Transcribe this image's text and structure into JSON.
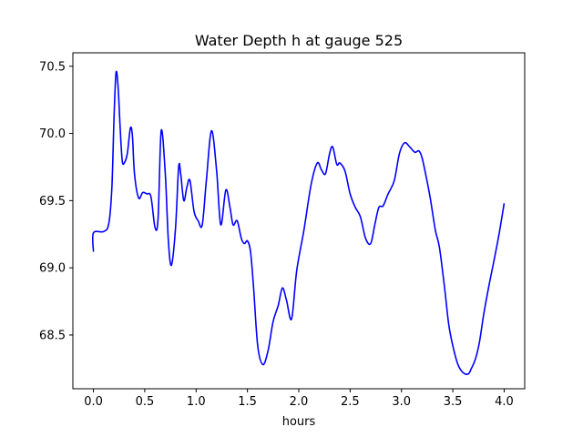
{
  "chart_data": {
    "type": "line",
    "title": "Water Depth h at gauge 525",
    "xlabel": "hours",
    "ylabel": "",
    "xlim": [
      -0.2,
      4.2
    ],
    "ylim": [
      68.1,
      70.6
    ],
    "xticks": [
      0.0,
      0.5,
      1.0,
      1.5,
      2.0,
      2.5,
      3.0,
      3.5,
      4.0
    ],
    "xtick_labels": [
      "0.0",
      "0.5",
      "1.0",
      "1.5",
      "2.0",
      "2.5",
      "3.0",
      "3.5",
      "4.0"
    ],
    "yticks": [
      68.5,
      69.0,
      69.5,
      70.0,
      70.5
    ],
    "ytick_labels": [
      "68.5",
      "69.0",
      "69.5",
      "70.0",
      "70.5"
    ],
    "grid": false,
    "series": [
      {
        "color": "#0000ff",
        "x": [
          0.0,
          0.0,
          0.1,
          0.15,
          0.18,
          0.2,
          0.22,
          0.24,
          0.26,
          0.28,
          0.3,
          0.33,
          0.36,
          0.38,
          0.4,
          0.44,
          0.48,
          0.52,
          0.56,
          0.6,
          0.63,
          0.66,
          0.7,
          0.73,
          0.76,
          0.8,
          0.83,
          0.85,
          0.88,
          0.91,
          0.94,
          0.98,
          1.02,
          1.06,
          1.1,
          1.15,
          1.2,
          1.24,
          1.29,
          1.33,
          1.36,
          1.4,
          1.44,
          1.47,
          1.5,
          1.53,
          1.56,
          1.6,
          1.65,
          1.7,
          1.75,
          1.8,
          1.84,
          1.88,
          1.93,
          1.98,
          2.05,
          2.12,
          2.18,
          2.22,
          2.26,
          2.3,
          2.33,
          2.37,
          2.4,
          2.45,
          2.5,
          2.55,
          2.6,
          2.65,
          2.7,
          2.74,
          2.78,
          2.82,
          2.87,
          2.93,
          2.98,
          3.03,
          3.08,
          3.13,
          3.17,
          3.2,
          3.24,
          3.28,
          3.33,
          3.37,
          3.42,
          3.46,
          3.5,
          3.55,
          3.6,
          3.65,
          3.68,
          3.72,
          3.76,
          3.8,
          3.85,
          3.9,
          3.95,
          4.0
        ],
        "y": [
          69.12,
          69.26,
          69.27,
          69.33,
          69.6,
          70.1,
          70.45,
          70.35,
          70.05,
          69.8,
          69.78,
          69.85,
          70.04,
          69.98,
          69.7,
          69.52,
          69.56,
          69.55,
          69.53,
          69.3,
          69.37,
          70.02,
          69.7,
          69.2,
          69.02,
          69.3,
          69.75,
          69.7,
          69.5,
          69.6,
          69.65,
          69.42,
          69.35,
          69.32,
          69.65,
          70.02,
          69.72,
          69.32,
          69.58,
          69.45,
          69.32,
          69.35,
          69.22,
          69.18,
          69.2,
          69.12,
          68.85,
          68.42,
          68.28,
          68.38,
          68.6,
          68.72,
          68.85,
          68.76,
          68.62,
          68.98,
          69.28,
          69.62,
          69.78,
          69.73,
          69.7,
          69.85,
          69.9,
          69.77,
          69.78,
          69.72,
          69.55,
          69.45,
          69.38,
          69.22,
          69.18,
          69.32,
          69.45,
          69.46,
          69.55,
          69.65,
          69.85,
          69.93,
          69.9,
          69.86,
          69.87,
          69.82,
          69.68,
          69.52,
          69.28,
          69.15,
          68.85,
          68.58,
          68.42,
          68.28,
          68.22,
          68.21,
          68.25,
          68.32,
          68.45,
          68.65,
          68.86,
          69.05,
          69.25,
          69.48
        ]
      }
    ]
  }
}
